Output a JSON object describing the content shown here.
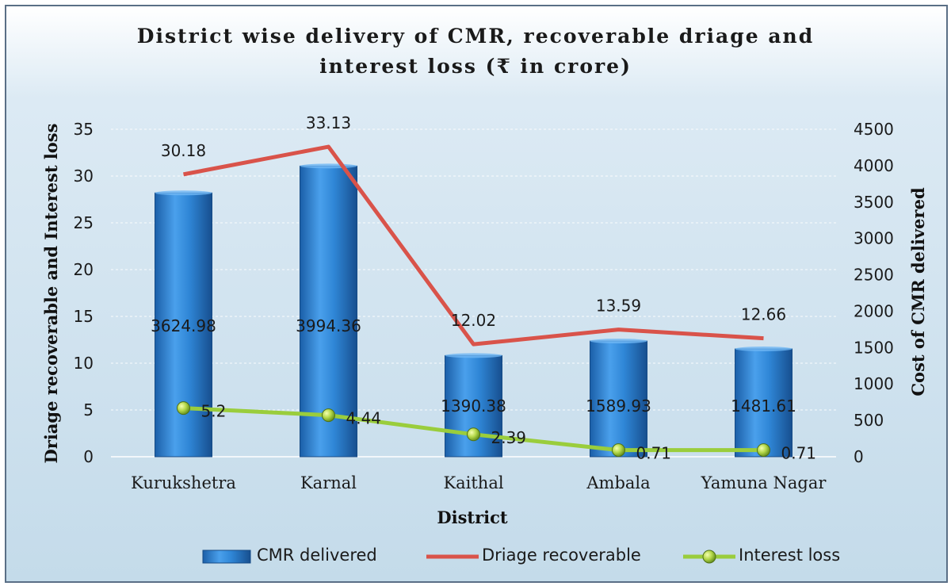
{
  "chart_data": {
    "type": "bar",
    "title_lines": [
      "District wise delivery of CMR, recoverable driage and",
      "interest loss (₹ in crore)"
    ],
    "xlabel": "District",
    "ylabel_left": "Driage recoverable and Interest loss",
    "ylabel_right": "Cost of CMR delivered",
    "categories": [
      "Kurukshetra",
      "Karnal",
      "Kaithal",
      "Ambala",
      "Yamuna Nagar"
    ],
    "ylim_left": [
      0,
      35
    ],
    "yticks_left": [
      0,
      5,
      10,
      15,
      20,
      25,
      30,
      35
    ],
    "ylim_right": [
      0,
      4500
    ],
    "yticks_right": [
      0,
      500,
      1000,
      1500,
      2000,
      2500,
      3000,
      3500,
      4000,
      4500
    ],
    "legend_position": "bottom",
    "series": [
      {
        "name": "CMR delivered",
        "kind": "bar",
        "axis": "right",
        "color": "#2e7fd0",
        "values": [
          3624.98,
          3994.36,
          1390.38,
          1589.93,
          1481.61
        ],
        "labels": [
          "3624.98",
          "3994.36",
          "1390.38",
          "1589.93",
          "1481.61"
        ]
      },
      {
        "name": "Driage recoverable",
        "kind": "line",
        "axis": "left",
        "color": "#d9534a",
        "values": [
          30.18,
          33.13,
          12.02,
          13.59,
          12.66
        ],
        "labels": [
          "30.18",
          "33.13",
          "12.02",
          "13.59",
          "12.66"
        ]
      },
      {
        "name": "Interest loss",
        "kind": "line-markers",
        "axis": "left",
        "color": "#9acd3c",
        "values": [
          5.2,
          4.44,
          2.39,
          0.71,
          0.71
        ],
        "labels": [
          "5.2",
          "4.44",
          "2.39",
          "0.71",
          "0.71"
        ]
      }
    ]
  }
}
